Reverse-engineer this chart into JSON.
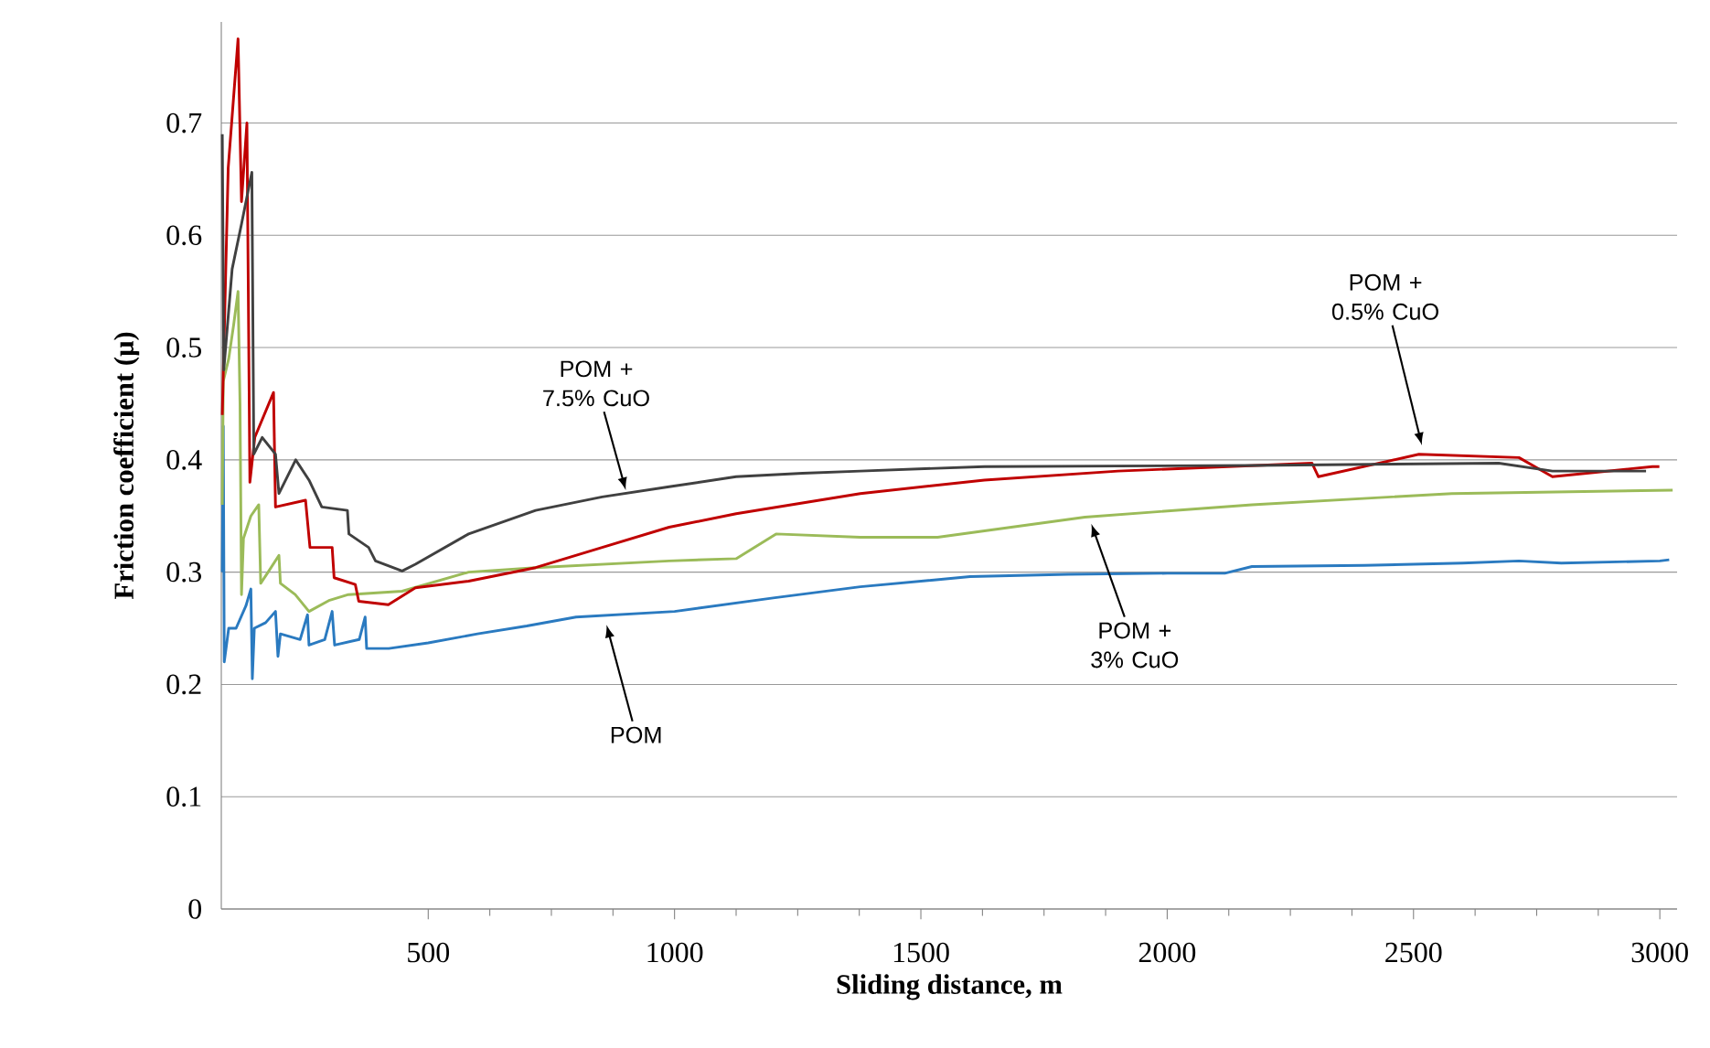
{
  "chart_data": {
    "type": "line",
    "xlabel": "Sliding distance, m",
    "ylabel": "Friction coefficient (μ)",
    "xlim": [
      80,
      3035
    ],
    "ylim": [
      0,
      0.79
    ],
    "xticks": [
      500,
      1000,
      1500,
      2000,
      2500,
      3000
    ],
    "yticks": [
      0,
      0.1,
      0.2,
      0.3,
      0.4,
      0.5,
      0.6,
      0.7
    ],
    "grid": "y",
    "line_style": "solid",
    "marker": "none",
    "series": [
      {
        "color": "#2a7ac0",
        "x": [
          82,
          84,
          86,
          95,
          110,
          130,
          140,
          143,
          147,
          170,
          190,
          195,
          200,
          240,
          255,
          258,
          290,
          305,
          310,
          360,
          372,
          375,
          420,
          500,
          600,
          700,
          800,
          1000,
          1200,
          1377,
          1600,
          1800,
          2000,
          2117,
          2172,
          2400,
          2600,
          2714,
          2800,
          3000,
          3019
        ],
        "values": [
          0.3,
          0.43,
          0.22,
          0.25,
          0.25,
          0.27,
          0.285,
          0.205,
          0.25,
          0.255,
          0.265,
          0.225,
          0.245,
          0.24,
          0.262,
          0.235,
          0.24,
          0.265,
          0.235,
          0.24,
          0.26,
          0.232,
          0.232,
          0.237,
          0.245,
          0.252,
          0.26,
          0.265,
          0.277,
          0.287,
          0.296,
          0.298,
          0.299,
          0.299,
          0.305,
          0.306,
          0.308,
          0.31,
          0.308,
          0.31,
          0.311
        ]
      },
      {
        "color": "#9bbb59",
        "x": [
          82,
          84,
          95,
          105,
          114,
          118,
          121,
          125,
          140,
          156,
          160,
          175,
          197,
          200,
          230,
          258,
          300,
          338,
          447,
          582,
          718,
          989,
          1125,
          1206,
          1377,
          1534,
          1833,
          2172,
          2578,
          3026
        ],
        "values": [
          0.36,
          0.47,
          0.49,
          0.52,
          0.55,
          0.45,
          0.28,
          0.33,
          0.35,
          0.36,
          0.29,
          0.3,
          0.315,
          0.29,
          0.28,
          0.265,
          0.275,
          0.28,
          0.283,
          0.3,
          0.304,
          0.31,
          0.312,
          0.334,
          0.331,
          0.331,
          0.349,
          0.36,
          0.37,
          0.373
        ]
      },
      {
        "color": "#c00000",
        "x": [
          82,
          94,
          114,
          121,
          132,
          138,
          148,
          186,
          190,
          251,
          260,
          305,
          309,
          352,
          359,
          419,
          474,
          582,
          718,
          853,
          989,
          1125,
          1377,
          1629,
          1900,
          2294,
          2307,
          2511,
          2714,
          2782,
          2985,
          2999
        ],
        "values": [
          0.44,
          0.66,
          0.775,
          0.63,
          0.7,
          0.38,
          0.42,
          0.46,
          0.358,
          0.364,
          0.322,
          0.322,
          0.295,
          0.289,
          0.274,
          0.271,
          0.286,
          0.292,
          0.304,
          0.322,
          0.34,
          0.352,
          0.37,
          0.382,
          0.39,
          0.397,
          0.385,
          0.405,
          0.402,
          0.385,
          0.394,
          0.394
        ]
      },
      {
        "color": "#404040",
        "x": [
          82,
          85,
          102,
          121,
          142,
          146,
          163,
          190,
          197,
          231,
          258,
          284,
          336,
          339,
          379,
          393,
          447,
          474,
          582,
          718,
          853,
          989,
          1125,
          1260,
          1377,
          1629,
          2172,
          2673,
          2782,
          2972
        ],
        "values": [
          0.69,
          0.48,
          0.57,
          0.61,
          0.656,
          0.405,
          0.42,
          0.405,
          0.37,
          0.4,
          0.382,
          0.358,
          0.355,
          0.334,
          0.322,
          0.31,
          0.301,
          0.307,
          0.334,
          0.355,
          0.367,
          0.376,
          0.385,
          0.388,
          0.39,
          0.394,
          0.395,
          0.397,
          0.39,
          0.39
        ]
      }
    ],
    "annotations": [
      {
        "text": "POM + 7.5% CuO",
        "x": 901,
        "y": 0.373
      },
      {
        "text": "POM + 0.5% CuO",
        "x": 2517,
        "y": 0.413
      },
      {
        "text": "POM + 3% CuO",
        "x": 1846,
        "y": 0.343
      },
      {
        "text": "POM",
        "x": 862,
        "y": 0.253
      }
    ]
  }
}
